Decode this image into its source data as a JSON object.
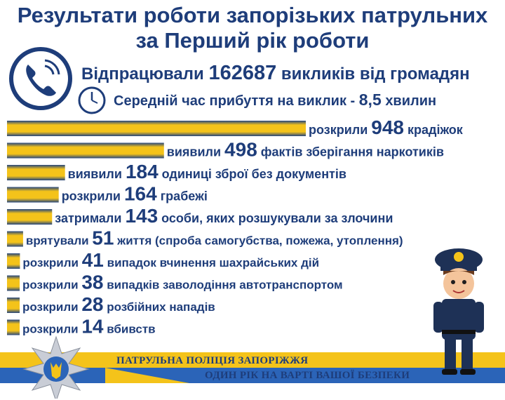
{
  "header": {
    "title_line1": "Результати роботи запорізьких патрульних",
    "title_line2": "за Перший рік роботи"
  },
  "calls": {
    "prefix": "Відпрацювали",
    "value": "162687",
    "suffix": "викликів від громадян"
  },
  "arrival": {
    "prefix": "Середній час прибуття на виклик -",
    "value": "8,5",
    "suffix": "хвилин"
  },
  "chart_data": {
    "type": "bar",
    "orientation": "horizontal",
    "categories": [
      "крадіжок",
      "фактів зберігання наркотиків",
      "одиниці зброї без документів",
      "грабежі",
      "особи, яких розшукували за злочини",
      "життя (спроба самогубства, пожежа, утоплення)",
      "випадок вчинення шахрайських дій",
      "випадків заволодіння автотранспортом",
      "розбійних нападів",
      "вбивств"
    ],
    "verbs": [
      "розкрили",
      "виявили",
      "виявили",
      "розкрили",
      "затримали",
      "врятували",
      "розкрили",
      "розкрили",
      "розкрили",
      "розкрили"
    ],
    "values": [
      948,
      498,
      184,
      164,
      143,
      51,
      41,
      38,
      28,
      14
    ],
    "colors": {
      "bar_main": "#f4c31a",
      "bar_edge": "#24457f"
    }
  },
  "footer": {
    "line1": "ПАТРУЛЬНА ПОЛІЦІЯ ЗАПОРІЖЖЯ",
    "line2": "ОДИН РІК НА ВАРТІ ВАШОЇ БЕЗПЕКИ"
  },
  "icons": [
    "phone-icon",
    "clock-icon",
    "police-badge-icon",
    "police-officer-icon"
  ]
}
